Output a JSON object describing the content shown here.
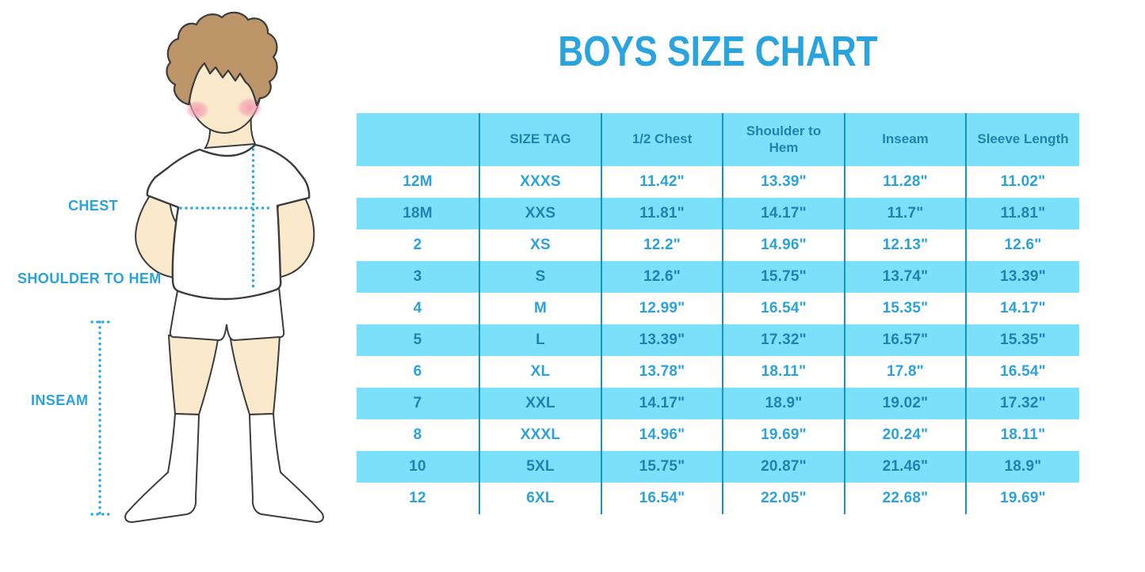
{
  "title": "BOYS SIZE CHART",
  "figure": {
    "chest_label": "CHEST",
    "shoulder_to_hem_label": "SHOULDER TO HEM",
    "inseam_label": "INSEAM"
  },
  "table": {
    "headers": [
      "",
      "SIZE TAG",
      "1/2 Chest",
      "Shoulder to Hem",
      "Inseam",
      "Sleeve Length"
    ],
    "rows": [
      [
        "12M",
        "XXXS",
        "11.42\"",
        "13.39\"",
        "11.28\"",
        "11.02\""
      ],
      [
        "18M",
        "XXS",
        "11.81\"",
        "14.17\"",
        "11.7\"",
        "11.81\""
      ],
      [
        "2",
        "XS",
        "12.2\"",
        "14.96\"",
        "12.13\"",
        "12.6\""
      ],
      [
        "3",
        "S",
        "12.6\"",
        "15.75\"",
        "13.74\"",
        "13.39\""
      ],
      [
        "4",
        "M",
        "12.99\"",
        "16.54\"",
        "15.35\"",
        "14.17\""
      ],
      [
        "5",
        "L",
        "13.39\"",
        "17.32\"",
        "16.57\"",
        "15.35\""
      ],
      [
        "6",
        "XL",
        "13.78\"",
        "18.11\"",
        "17.8\"",
        "16.54\""
      ],
      [
        "7",
        "XXL",
        "14.17\"",
        "18.9\"",
        "19.02\"",
        "17.32\""
      ],
      [
        "8",
        "XXXL",
        "14.96\"",
        "19.69\"",
        "20.24\"",
        "18.11\""
      ],
      [
        "10",
        "5XL",
        "15.75\"",
        "20.87\"",
        "21.46\"",
        "18.9\""
      ],
      [
        "12",
        "6XL",
        "16.54\"",
        "22.05\"",
        "22.68\"",
        "19.69\""
      ]
    ]
  },
  "colors": {
    "accent_blue": "#29A4DE",
    "table_fill": "#7BE1FA",
    "divider_blue": "#1791C9",
    "text_on_fill": "#1F84AD",
    "text_on_white": "#2BA2DB",
    "hair_brown": "#BC9569",
    "skin": "#FBE9CC",
    "blush_pink": "#F29DB3"
  }
}
